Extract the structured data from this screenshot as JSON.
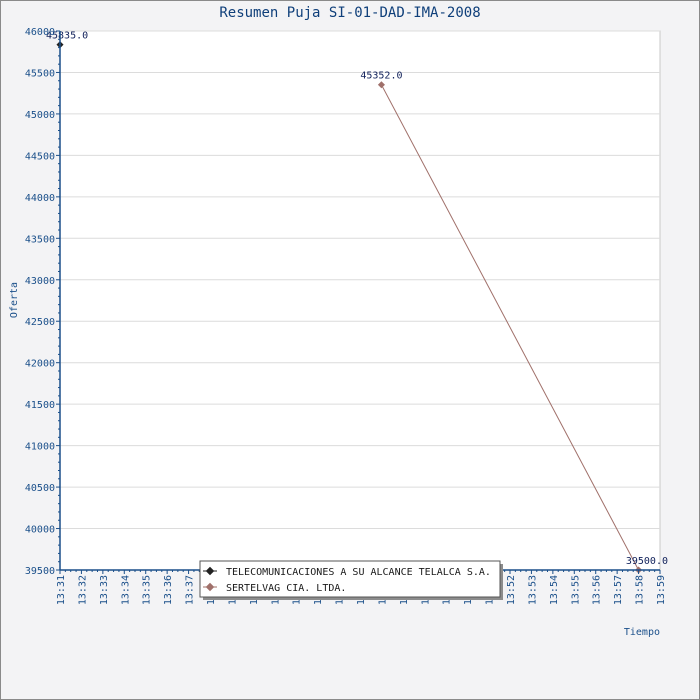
{
  "chart_data": {
    "type": "line",
    "title": "Resumen Puja SI-01-DAD-IMA-2008",
    "xlabel": "Tiempo",
    "ylabel": "Oferta",
    "ylim": [
      39500,
      46000
    ],
    "yticks": [
      39500,
      40000,
      40500,
      41000,
      41500,
      42000,
      42500,
      43000,
      43500,
      44000,
      44500,
      45000,
      45500,
      46000
    ],
    "xticks": [
      "13:31",
      "13:32",
      "13:33",
      "13:34",
      "13:35",
      "13:36",
      "13:37",
      "13:38",
      "13:39",
      "13:40",
      "13:41",
      "13:42",
      "13:43",
      "13:44",
      "13:45",
      "13:46",
      "13:47",
      "13:48",
      "13:49",
      "13:50",
      "13:51",
      "13:52",
      "13:53",
      "13:54",
      "13:55",
      "13:56",
      "13:57",
      "13:58",
      "13:59"
    ],
    "xtick_labels": [
      "13:31",
      "13:32",
      "13:33",
      "13:34",
      "13:35",
      "13:36",
      "13:37",
      "13:38",
      "13:39",
      "13:40",
      "13:41",
      "13:42",
      "13:43",
      "13:44",
      "13:45",
      "13:46",
      "13:47",
      "13:48",
      "13:49",
      "13:50",
      "13:51",
      "13:52",
      "13:53",
      "13:54",
      "13:55",
      "13:56",
      "13:57",
      "13:58",
      "13:59"
    ],
    "grid": "horizontal",
    "legend_position": "bottom-center",
    "series": [
      {
        "name": "TELECOMUNICACIONES A SU ALCANCE TELALCA S.A.",
        "color": "#222222",
        "points": [
          {
            "x": "13:31",
            "y": 45835.0,
            "label": "45835.0"
          }
        ]
      },
      {
        "name": "SERTELVAG CIA. LTDA.",
        "color": "#a0706a",
        "points": [
          {
            "x": "13:46",
            "y": 45352.0,
            "label": "45352.0"
          },
          {
            "x": "13:58",
            "y": 39500.0,
            "label": "39500.0"
          }
        ]
      }
    ]
  },
  "colors": {
    "axis": "#1a4f8a",
    "title": "#0f3f7a",
    "grid": "#dcdcdc",
    "plot_bg": "#ffffff",
    "page_bg": "#f3f3f5"
  }
}
